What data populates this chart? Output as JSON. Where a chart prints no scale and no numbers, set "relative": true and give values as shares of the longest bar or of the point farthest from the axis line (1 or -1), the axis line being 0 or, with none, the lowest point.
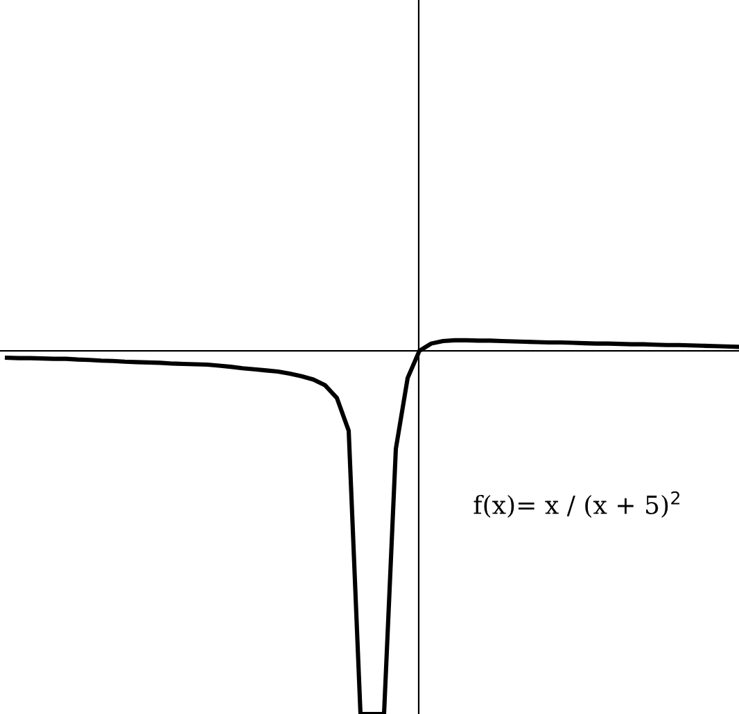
{
  "chart_data": {
    "type": "line",
    "relative": true,
    "categories": [
      null,
      null,
      null,
      null,
      null,
      null,
      null,
      null,
      null,
      null,
      null,
      null,
      null,
      null,
      null,
      null,
      null,
      null,
      null,
      null,
      null,
      null,
      null,
      null,
      null,
      null,
      null,
      null,
      null,
      null,
      null,
      null,
      null,
      null,
      null,
      null,
      null,
      null,
      null,
      null,
      null,
      null,
      null,
      null,
      null,
      null,
      null,
      null,
      null,
      null,
      null,
      null,
      null,
      null,
      null,
      null,
      null,
      null,
      null,
      null,
      null,
      null,
      null
    ],
    "series": [
      {
        "color": "#000000",
        "values": [
          -0.019,
          -0.02,
          -0.02,
          -0.021,
          -0.022,
          -0.022,
          -0.024,
          -0.025,
          -0.027,
          -0.028,
          -0.03,
          -0.031,
          -0.032,
          -0.033,
          -0.035,
          -0.036,
          -0.037,
          -0.038,
          -0.041,
          -0.044,
          -0.048,
          -0.051,
          -0.054,
          -0.057,
          -0.063,
          -0.07,
          -0.079,
          -0.095,
          -0.13,
          -0.22,
          -1,
          -1,
          -1,
          -0.27,
          -0.075,
          0,
          0.02,
          0.027,
          0.029,
          0.029,
          0.028,
          0.028,
          0.027,
          0.026,
          0.025,
          0.024,
          0.023,
          0.023,
          0.022,
          0.021,
          0.02,
          0.02,
          0.019,
          0.018,
          0.018,
          0.017,
          0.016,
          0.016,
          0.015,
          0.014,
          0.013,
          0.012,
          0.011
        ]
      }
    ],
    "annotations": [
      "f(x)= x / (x + 5)$^{2}$"
    ],
    "grid": false,
    "legend": false
  }
}
